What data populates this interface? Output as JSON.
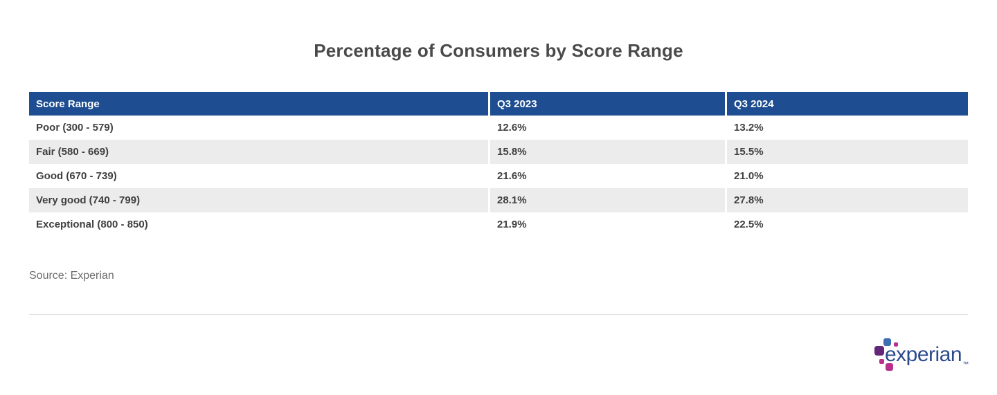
{
  "chart_data": {
    "type": "table",
    "title": "Percentage of Consumers by Score Range",
    "columns": [
      "Score Range",
      "Q3 2023",
      "Q3 2024"
    ],
    "categories": [
      "Poor (300 - 579)",
      "Fair (580 - 669)",
      "Good (670 - 739)",
      "Very good (740 - 799)",
      "Exceptional (800 - 850)"
    ],
    "rows": [
      [
        "Poor (300 - 579)",
        "12.6%",
        "13.2%"
      ],
      [
        "Fair (580 - 669)",
        "15.8%",
        "15.5%"
      ],
      [
        "Good (670 - 739)",
        "21.6%",
        "21.0%"
      ],
      [
        "Very good (740 - 799)",
        "28.1%",
        "27.8%"
      ],
      [
        "Exceptional (800 - 850)",
        "21.9%",
        "22.5%"
      ]
    ],
    "series": [
      {
        "name": "Q3 2023",
        "values": [
          12.6,
          15.8,
          21.6,
          28.1,
          21.9
        ]
      },
      {
        "name": "Q3 2024",
        "values": [
          13.2,
          15.5,
          21.0,
          27.8,
          22.5
        ]
      }
    ],
    "layout": {
      "header_bg": "#1e4e91",
      "header_text_color": "#ffffff",
      "alt_row_bg": "#ececec",
      "body_text_color": "#3f3f3f",
      "grid": "none"
    }
  },
  "source": "Source: Experian",
  "logo": {
    "wordmark": "experian",
    "trademark": "™",
    "colors": {
      "wordmark_blue": "#2b4a8e",
      "sapphire_blue": "#406eb3",
      "purple": "#632678",
      "magenta": "#ba2f8a"
    }
  }
}
